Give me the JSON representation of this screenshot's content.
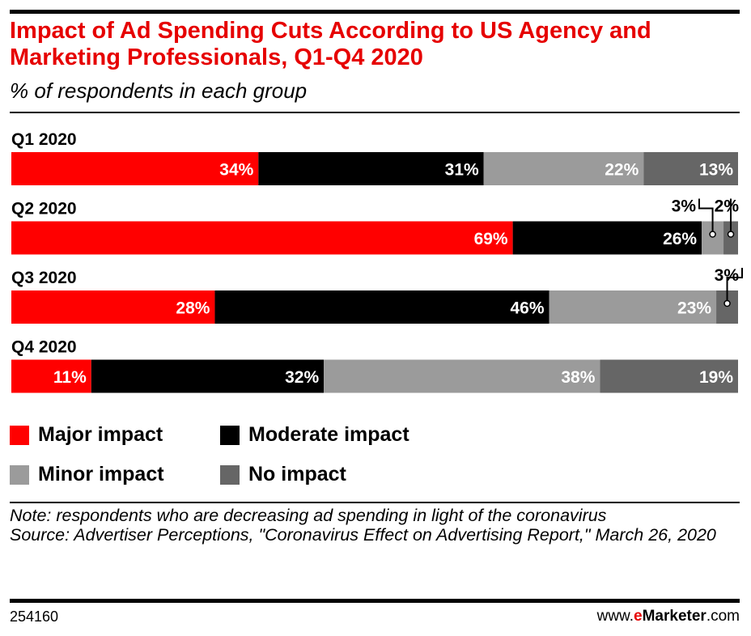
{
  "header": {
    "title": "Impact of Ad Spending Cuts According to US Agency and Marketing Professionals, Q1-Q4 2020",
    "subtitle": "% of respondents in each group"
  },
  "colors": {
    "major": "#ff0000",
    "moderate": "#000000",
    "minor": "#9b9b9b",
    "none": "#666666",
    "brand": "#e60000"
  },
  "legend": {
    "major": "Major impact",
    "moderate": "Moderate impact",
    "minor": "Minor impact",
    "none": "No impact"
  },
  "chart_data": {
    "type": "bar",
    "orientation": "horizontal",
    "stacked": true,
    "categories": [
      "Q1 2020",
      "Q2 2020",
      "Q3 2020",
      "Q4 2020"
    ],
    "series": [
      {
        "name": "Major impact",
        "values": [
          34,
          69,
          28,
          11
        ]
      },
      {
        "name": "Moderate impact",
        "values": [
          31,
          26,
          46,
          32
        ]
      },
      {
        "name": "Minor impact",
        "values": [
          22,
          3,
          23,
          38
        ]
      },
      {
        "name": "No impact",
        "values": [
          13,
          2,
          3,
          19
        ]
      }
    ],
    "value_labels": [
      [
        "34%",
        "31%",
        "22%",
        "13%"
      ],
      [
        "69%",
        "26%",
        "3%",
        "2%"
      ],
      [
        "28%",
        "46%",
        "23%",
        "3%"
      ],
      [
        "11%",
        "32%",
        "38%",
        "19%"
      ]
    ],
    "legend_position": "bottom",
    "xlim": [
      0,
      100
    ],
    "grid": false
  },
  "footer": {
    "note": "Note: respondents who are decreasing ad spending in light of the coronavirus",
    "source": "Source: Advertiser Perceptions, \"Coronavirus Effect on Advertising Report,\" March 26, 2020",
    "chart_id": "254160",
    "brand_prefix": "www.",
    "brand_e": "e",
    "brand_name": "Marketer",
    "brand_suffix": ".com"
  }
}
